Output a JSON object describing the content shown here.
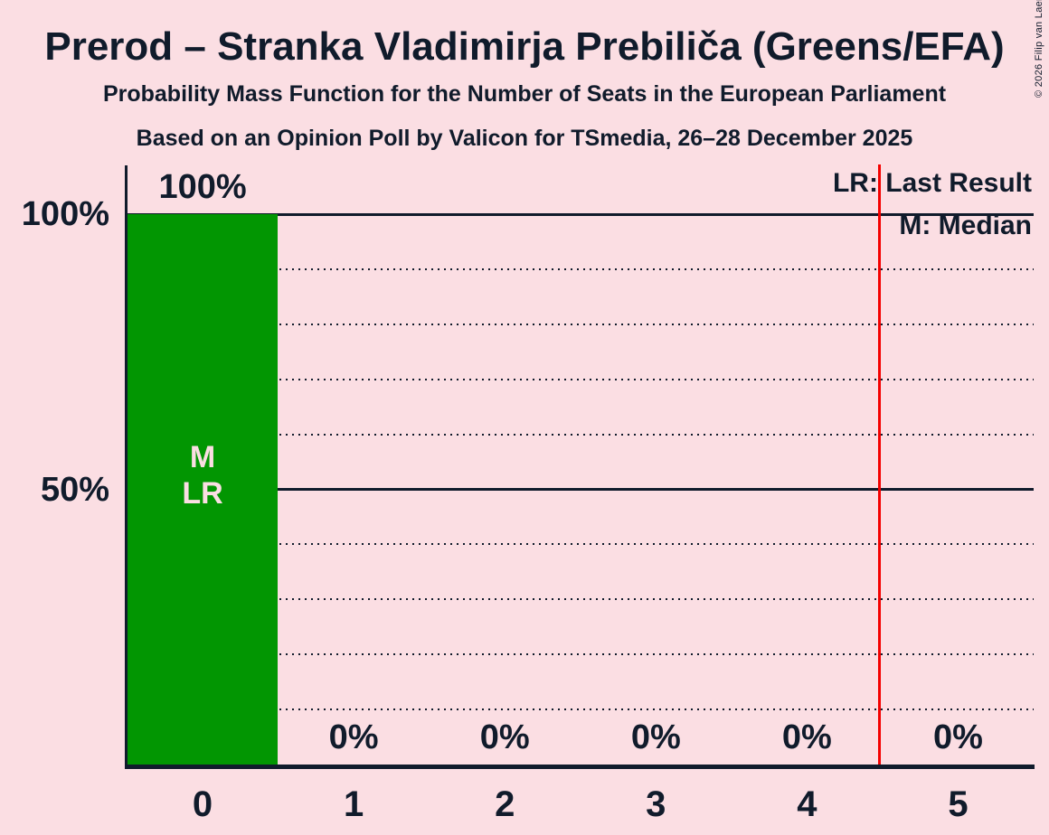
{
  "title": "Prerod – Stranka Vladimirja Prebiliča (Greens/EFA)",
  "subtitle1": "Probability Mass Function for the Number of Seats in the European Parliament",
  "subtitle2": "Based on an Opinion Poll by Valicon for TSmedia, 26–28 December 2025",
  "copyright": "© 2026 Filip van Laenen",
  "legend": {
    "last_result": "LR: Last Result",
    "median": "M: Median"
  },
  "markers": {
    "median": "M",
    "last_result": "LR"
  },
  "chart_data": {
    "type": "bar",
    "title": "Prerod – Stranka Vladimirja Prebiliča (Greens/EFA)",
    "subtitle": "Probability Mass Function for the Number of Seats in the European Parliament",
    "source_line": "Based on an Opinion Poll by Valicon for TSmedia, 26–28 December 2025",
    "categories": [
      "0",
      "1",
      "2",
      "3",
      "4",
      "5"
    ],
    "values": [
      100,
      0,
      0,
      0,
      0,
      0
    ],
    "value_labels": [
      "100%",
      "0%",
      "0%",
      "0%",
      "0%",
      "0%"
    ],
    "ylim": [
      0,
      100
    ],
    "yticks": [
      {
        "value": 100,
        "label": "100%"
      },
      {
        "value": 50,
        "label": "50%"
      }
    ],
    "gridlines": {
      "solid_percent": [
        100,
        50
      ],
      "dotted_percent": [
        90,
        80,
        70,
        60,
        40,
        30,
        20,
        10
      ]
    },
    "median_seats": "0",
    "last_result_seats": "0",
    "red_line_seat_position": 4.97,
    "legend_position": "top-right",
    "grid": "dotted-horizontal",
    "colors": {
      "bar": "#029602",
      "background": "#FBDEE3",
      "text": "#101B2B",
      "red_line": "#F40000"
    }
  }
}
